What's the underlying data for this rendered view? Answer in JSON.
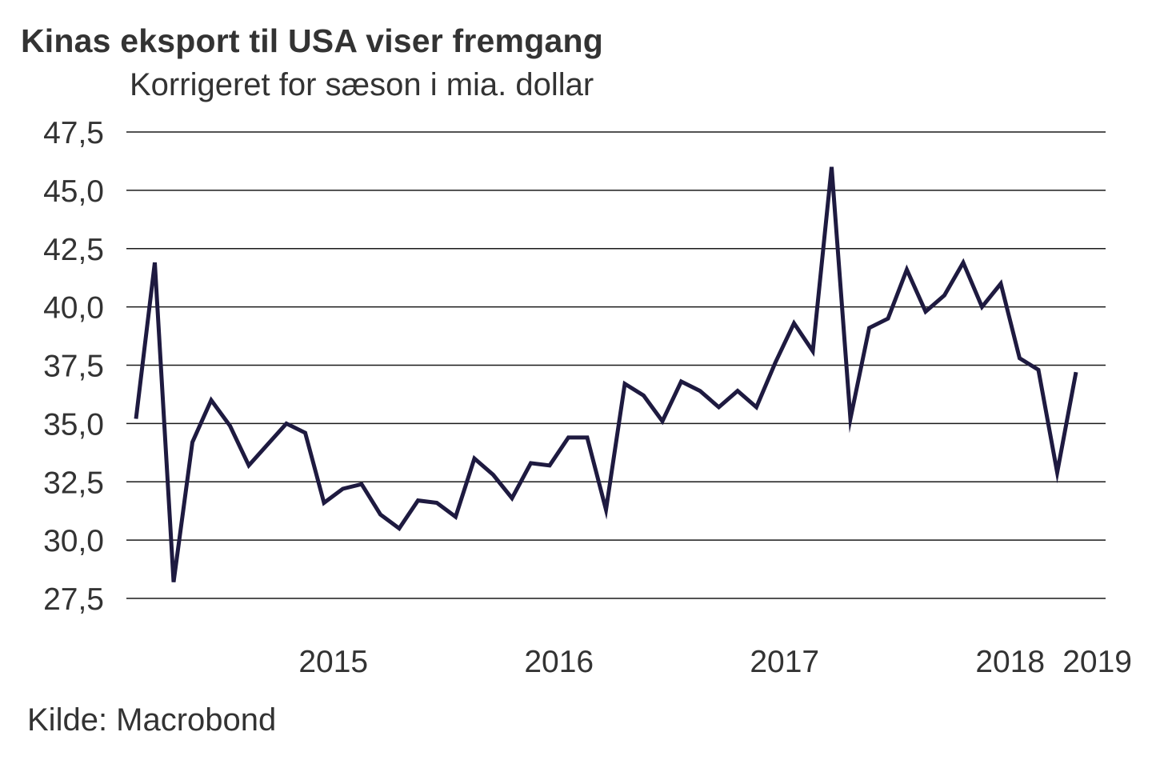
{
  "title": "Kinas eksport til USA viser fremgang",
  "subtitle": "Korrigeret for sæson i mia. dollar",
  "source": "Kilde: Macrobond",
  "chart_data": {
    "type": "line",
    "title": "Kinas eksport til USA viser fremgang",
    "subtitle": "Korrigeret for sæson i mia. dollar",
    "xlabel": "",
    "ylabel": "",
    "ylim": [
      27.5,
      47.5
    ],
    "yticks": [
      27.5,
      30.0,
      32.5,
      35.0,
      37.5,
      40.0,
      42.5,
      45.0,
      47.5
    ],
    "ytick_labels": [
      "27,5",
      "30,0",
      "32,5",
      "35,0",
      "37,5",
      "40,0",
      "42,5",
      "45,0",
      "47,5"
    ],
    "xticks": [
      2015,
      2016,
      2017,
      2018,
      2019
    ],
    "xtick_labels": [
      "2015",
      "2016",
      "2017",
      "2018",
      "2019"
    ],
    "x_start": "2014-08",
    "grid": true,
    "legend": "none",
    "line_color": "#1e1a40",
    "series": [
      {
        "name": "Kinas eksport til USA",
        "values": [
          35.2,
          41.9,
          28.2,
          34.2,
          36.0,
          34.9,
          33.2,
          34.1,
          35.0,
          34.6,
          31.6,
          32.2,
          32.4,
          31.1,
          30.5,
          31.7,
          31.6,
          31.0,
          33.5,
          32.8,
          31.8,
          33.3,
          33.2,
          34.4,
          34.4,
          31.3,
          36.7,
          36.2,
          35.1,
          36.8,
          36.4,
          35.7,
          36.4,
          35.7,
          37.6,
          39.3,
          38.1,
          46.0,
          35.2,
          39.1,
          39.5,
          41.6,
          39.8,
          40.5,
          41.9,
          40.0,
          41.0,
          37.8,
          37.3,
          32.9,
          37.2
        ]
      }
    ]
  }
}
